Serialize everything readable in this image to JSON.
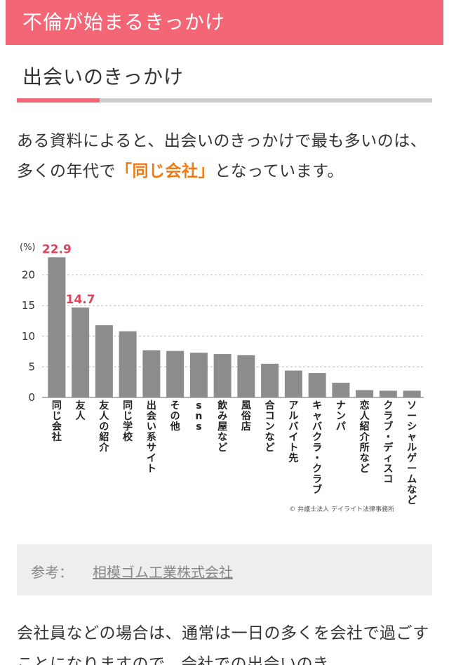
{
  "header": {
    "title": "不倫が始まるきっかけ"
  },
  "section": {
    "title": "出会いのきっかけ"
  },
  "intro": {
    "before": "ある資料によると、出会いのきっかけで最も多いのは、多くの年代で",
    "highlight": "「同じ会社」",
    "after": "となっています。"
  },
  "chart_data": {
    "type": "bar",
    "unit_label": "(%)",
    "categories": [
      "同じ会社",
      "友人",
      "友人の紹介",
      "同じ学校",
      "出会い系サイト",
      "その他",
      "sns",
      "飲み屋など",
      "風俗店",
      "合コンなど",
      "アルバイト先",
      "キャバクラ・クラブ",
      "ナンパ",
      "恋人紹介所など",
      "クラブ・ディスコ",
      "ソーシャルゲームなど"
    ],
    "values": [
      22.9,
      14.7,
      11.8,
      10.8,
      7.7,
      7.6,
      7.3,
      7.1,
      6.9,
      5.5,
      4.4,
      4.0,
      2.4,
      1.2,
      1.1,
      1.1
    ],
    "data_labels": [
      {
        "index": 0,
        "text": "22.9"
      },
      {
        "index": 1,
        "text": "14.7"
      }
    ],
    "y_ticks": [
      0,
      5,
      10,
      15,
      20
    ],
    "ylim": [
      0,
      25
    ],
    "grid": "dashed horizontal",
    "credit": "© 弁護士法人 デイライト法律事務所",
    "colors": {
      "bar": "#8c8c8c",
      "label": "#e0435a"
    }
  },
  "reference": {
    "label": "参考：",
    "link": "相模ゴム工業株式会社"
  },
  "body": {
    "text": "会社員などの場合は、通常は一日の多くを会社で過ごすことになりますので、会社での出会いのき"
  },
  "colors": {
    "accent": "#f26676",
    "highlight": "#f07a12"
  }
}
